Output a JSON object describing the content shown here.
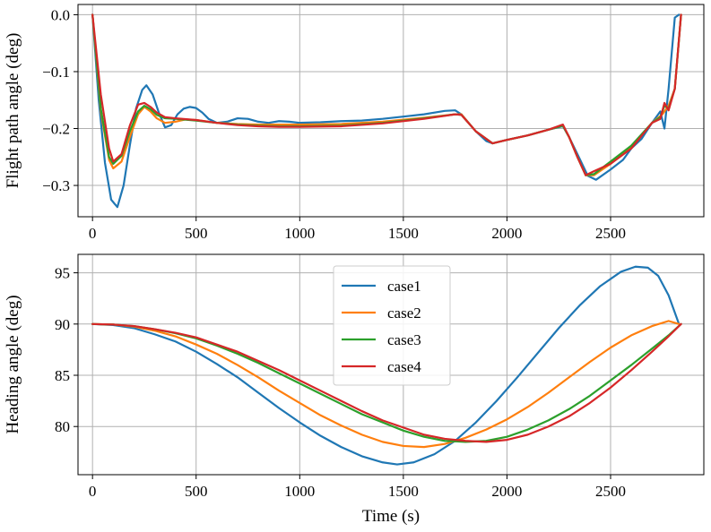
{
  "colors": {
    "case1": "#1f77b4",
    "case2": "#ff7f0e",
    "case3": "#2ca02c",
    "case4": "#d62728",
    "grid": "#b0b0b0"
  },
  "chart_data": [
    {
      "type": "line",
      "title": "",
      "xlabel": "",
      "ylabel": "Flight path angle (deg)",
      "xlim": [
        -70,
        2950
      ],
      "ylim": [
        -0.355,
        0.018
      ],
      "xticks": [
        0,
        500,
        1000,
        1500,
        2000,
        2500
      ],
      "xtick_labels": [
        "0",
        "500",
        "1000",
        "1500",
        "2000",
        "2500"
      ],
      "yticks": [
        0.0,
        -0.1,
        -0.2,
        -0.3
      ],
      "ytick_labels": [
        "0.0",
        "−0.1",
        "−0.2",
        "−0.3"
      ],
      "grid": true,
      "series": [
        {
          "name": "case1",
          "x": [
            0,
            30,
            60,
            90,
            120,
            150,
            180,
            210,
            240,
            260,
            290,
            320,
            350,
            380,
            410,
            440,
            470,
            500,
            530,
            560,
            600,
            650,
            700,
            750,
            800,
            850,
            900,
            950,
            1000,
            1100,
            1200,
            1300,
            1400,
            1500,
            1600,
            1700,
            1750,
            1780,
            1850,
            1900,
            1930,
            2000,
            2100,
            2200,
            2270,
            2300,
            2340,
            2390,
            2430,
            2500,
            2560,
            2600,
            2650,
            2700,
            2740,
            2760,
            2780,
            2810,
            2830
          ],
          "y": [
            0.0,
            -0.15,
            -0.26,
            -0.325,
            -0.338,
            -0.3,
            -0.23,
            -0.165,
            -0.132,
            -0.124,
            -0.14,
            -0.172,
            -0.198,
            -0.194,
            -0.175,
            -0.165,
            -0.162,
            -0.164,
            -0.172,
            -0.183,
            -0.19,
            -0.188,
            -0.182,
            -0.183,
            -0.188,
            -0.19,
            -0.187,
            -0.188,
            -0.19,
            -0.189,
            -0.187,
            -0.186,
            -0.183,
            -0.179,
            -0.175,
            -0.169,
            -0.168,
            -0.175,
            -0.205,
            -0.222,
            -0.226,
            -0.22,
            -0.212,
            -0.202,
            -0.196,
            -0.215,
            -0.245,
            -0.283,
            -0.29,
            -0.272,
            -0.255,
            -0.235,
            -0.218,
            -0.19,
            -0.17,
            -0.2,
            -0.13,
            -0.005,
            0.0
          ]
        },
        {
          "name": "case2",
          "x": [
            0,
            40,
            80,
            100,
            140,
            180,
            220,
            250,
            280,
            310,
            350,
            400,
            450,
            500,
            600,
            700,
            800,
            900,
            1000,
            1200,
            1400,
            1600,
            1750,
            1780,
            1850,
            1930,
            2000,
            2100,
            2200,
            2270,
            2300,
            2340,
            2380,
            2420,
            2500,
            2600,
            2700,
            2750,
            2780,
            2810,
            2840
          ],
          "y": [
            0.0,
            -0.17,
            -0.255,
            -0.27,
            -0.258,
            -0.215,
            -0.175,
            -0.162,
            -0.17,
            -0.182,
            -0.19,
            -0.188,
            -0.184,
            -0.185,
            -0.19,
            -0.192,
            -0.193,
            -0.193,
            -0.193,
            -0.192,
            -0.188,
            -0.181,
            -0.175,
            -0.175,
            -0.205,
            -0.226,
            -0.22,
            -0.212,
            -0.202,
            -0.195,
            -0.215,
            -0.25,
            -0.282,
            -0.282,
            -0.262,
            -0.232,
            -0.19,
            -0.175,
            -0.16,
            -0.13,
            0.0
          ]
        },
        {
          "name": "case3",
          "x": [
            0,
            40,
            80,
            100,
            140,
            180,
            220,
            250,
            280,
            310,
            350,
            400,
            500,
            600,
            700,
            800,
            900,
            1000,
            1200,
            1400,
            1600,
            1750,
            1780,
            1850,
            1930,
            2000,
            2100,
            2200,
            2270,
            2300,
            2340,
            2380,
            2420,
            2500,
            2600,
            2700,
            2740,
            2760,
            2780,
            2810,
            2840
          ],
          "y": [
            0.0,
            -0.165,
            -0.25,
            -0.262,
            -0.248,
            -0.205,
            -0.17,
            -0.16,
            -0.166,
            -0.176,
            -0.182,
            -0.183,
            -0.186,
            -0.19,
            -0.193,
            -0.195,
            -0.196,
            -0.196,
            -0.195,
            -0.19,
            -0.182,
            -0.175,
            -0.176,
            -0.205,
            -0.226,
            -0.22,
            -0.212,
            -0.202,
            -0.195,
            -0.215,
            -0.25,
            -0.282,
            -0.28,
            -0.258,
            -0.23,
            -0.19,
            -0.18,
            -0.16,
            -0.165,
            -0.13,
            0.0
          ]
        },
        {
          "name": "case4",
          "x": [
            0,
            40,
            80,
            100,
            140,
            180,
            220,
            250,
            280,
            310,
            350,
            400,
            500,
            600,
            700,
            800,
            900,
            1000,
            1200,
            1400,
            1600,
            1750,
            1780,
            1850,
            1930,
            2000,
            2100,
            2200,
            2270,
            2300,
            2340,
            2380,
            2420,
            2500,
            2600,
            2700,
            2740,
            2760,
            2780,
            2810,
            2840
          ],
          "y": [
            0.0,
            -0.14,
            -0.235,
            -0.258,
            -0.245,
            -0.195,
            -0.158,
            -0.155,
            -0.162,
            -0.172,
            -0.18,
            -0.182,
            -0.185,
            -0.19,
            -0.194,
            -0.196,
            -0.197,
            -0.197,
            -0.196,
            -0.191,
            -0.183,
            -0.175,
            -0.176,
            -0.205,
            -0.226,
            -0.22,
            -0.212,
            -0.202,
            -0.193,
            -0.215,
            -0.25,
            -0.282,
            -0.275,
            -0.262,
            -0.235,
            -0.19,
            -0.183,
            -0.155,
            -0.168,
            -0.13,
            0.0
          ]
        }
      ]
    },
    {
      "type": "line",
      "title": "",
      "xlabel": "Time (s)",
      "ylabel": "Heading angle (deg)",
      "xlim": [
        -70,
        2950
      ],
      "ylim": [
        75.3,
        96.8
      ],
      "xticks": [
        0,
        500,
        1000,
        1500,
        2000,
        2500
      ],
      "xtick_labels": [
        "0",
        "500",
        "1000",
        "1500",
        "2000",
        "2500"
      ],
      "yticks": [
        80,
        85,
        90,
        95
      ],
      "ytick_labels": [
        "80",
        "85",
        "90",
        "95"
      ],
      "grid": true,
      "legend": {
        "position": "upper-center",
        "entries": [
          "case1",
          "case2",
          "case3",
          "case4"
        ]
      },
      "series": [
        {
          "name": "case1",
          "x": [
            0,
            100,
            200,
            300,
            400,
            500,
            600,
            700,
            800,
            900,
            1000,
            1100,
            1200,
            1300,
            1400,
            1470,
            1550,
            1650,
            1750,
            1850,
            1950,
            2050,
            2150,
            2250,
            2350,
            2450,
            2550,
            2620,
            2680,
            2730,
            2780,
            2830
          ],
          "y": [
            90.0,
            89.9,
            89.6,
            89.0,
            88.3,
            87.3,
            86.1,
            84.8,
            83.3,
            81.8,
            80.4,
            79.1,
            78.0,
            77.1,
            76.5,
            76.3,
            76.5,
            77.3,
            78.6,
            80.4,
            82.5,
            84.8,
            87.2,
            89.6,
            91.8,
            93.7,
            95.1,
            95.6,
            95.5,
            94.7,
            92.8,
            90.0
          ]
        },
        {
          "name": "case2",
          "x": [
            0,
            100,
            200,
            300,
            400,
            500,
            600,
            700,
            800,
            900,
            1000,
            1100,
            1200,
            1300,
            1400,
            1500,
            1600,
            1700,
            1800,
            1900,
            2000,
            2100,
            2200,
            2300,
            2400,
            2500,
            2600,
            2700,
            2780,
            2830
          ],
          "y": [
            90.0,
            89.95,
            89.75,
            89.35,
            88.8,
            88.0,
            87.1,
            86.0,
            84.8,
            83.5,
            82.3,
            81.1,
            80.1,
            79.2,
            78.5,
            78.1,
            78.0,
            78.3,
            78.9,
            79.7,
            80.7,
            81.9,
            83.3,
            84.8,
            86.3,
            87.7,
            88.9,
            89.8,
            90.3,
            90.0
          ]
        },
        {
          "name": "case3",
          "x": [
            0,
            100,
            200,
            300,
            400,
            500,
            600,
            700,
            800,
            900,
            1000,
            1100,
            1200,
            1300,
            1400,
            1500,
            1600,
            1700,
            1800,
            1900,
            2000,
            2100,
            2200,
            2300,
            2400,
            2500,
            2600,
            2700,
            2780,
            2840
          ],
          "y": [
            90.0,
            89.95,
            89.8,
            89.5,
            89.1,
            88.6,
            87.9,
            87.1,
            86.2,
            85.2,
            84.2,
            83.2,
            82.2,
            81.2,
            80.4,
            79.6,
            79.0,
            78.6,
            78.5,
            78.6,
            79.0,
            79.7,
            80.6,
            81.7,
            83.0,
            84.5,
            86.0,
            87.6,
            88.9,
            90.0
          ]
        },
        {
          "name": "case4",
          "x": [
            0,
            100,
            200,
            300,
            400,
            500,
            600,
            700,
            800,
            900,
            1000,
            1100,
            1200,
            1300,
            1400,
            1500,
            1600,
            1700,
            1800,
            1900,
            2000,
            2100,
            2200,
            2300,
            2400,
            2500,
            2600,
            2700,
            2780,
            2840
          ],
          "y": [
            90.0,
            89.95,
            89.8,
            89.5,
            89.15,
            88.7,
            88.0,
            87.3,
            86.4,
            85.5,
            84.5,
            83.5,
            82.5,
            81.5,
            80.6,
            79.9,
            79.2,
            78.8,
            78.6,
            78.5,
            78.7,
            79.2,
            80.0,
            81.0,
            82.3,
            83.8,
            85.5,
            87.3,
            88.8,
            90.0
          ]
        }
      ]
    }
  ]
}
